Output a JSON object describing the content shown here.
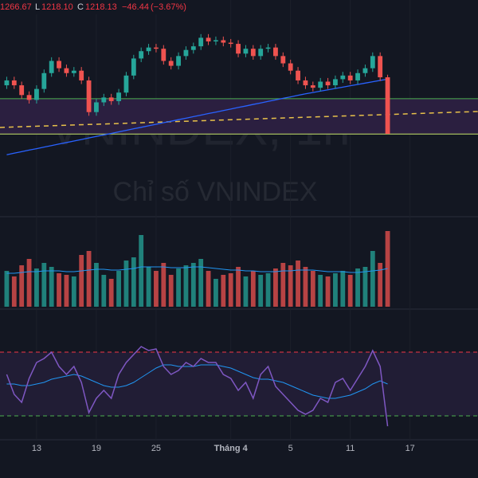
{
  "chart_data": {
    "type": "candlestick",
    "watermark": "VNINDEX, 1h",
    "watermark_sub": "Chỉ số VNINDEX",
    "ohlc_header": {
      "high": {
        "value": 1266.67,
        "label": "1266.67"
      },
      "low": {
        "key": "L",
        "value": 1218.1,
        "label": "1218.10"
      },
      "close": {
        "key": "C",
        "value": 1218.13,
        "label": "1218.13"
      },
      "change": {
        "value": -46.44,
        "label": "−46.44"
      },
      "change_pct": {
        "value": -3.67,
        "label": "(−3.67%)"
      }
    },
    "xlim": [
      -0.9,
      63.1
    ],
    "xticks": [
      {
        "value": 4,
        "label": "13"
      },
      {
        "value": 12,
        "label": "19"
      },
      {
        "value": 20,
        "label": "25"
      },
      {
        "value": 30,
        "label": "Tháng 4"
      },
      {
        "value": 38,
        "label": "5"
      },
      {
        "value": 46,
        "label": "11"
      },
      {
        "value": 54,
        "label": "17"
      }
    ],
    "ylim": [
      1158,
      1328
    ],
    "up_color": "#26a69a",
    "down_color": "#ef5350",
    "opens": [
      1258,
      1262,
      1258,
      1250,
      1246,
      1255,
      1268,
      1278,
      1272,
      1268,
      1270,
      1262,
      1236,
      1244,
      1248,
      1245,
      1252,
      1266,
      1280,
      1286,
      1289,
      1288,
      1278,
      1274,
      1282,
      1287,
      1290,
      1297,
      1294,
      1295,
      1293,
      1292,
      1284,
      1288,
      1282,
      1288,
      1289,
      1282,
      1276,
      1270,
      1262,
      1258,
      1256,
      1261,
      1258,
      1263,
      1266,
      1262,
      1268,
      1272,
      1282,
      1264.57
    ],
    "highs": [
      1265,
      1265,
      1261,
      1253,
      1258,
      1271,
      1281,
      1281,
      1275,
      1273,
      1273,
      1265,
      1247,
      1251,
      1251,
      1255,
      1269,
      1283,
      1289,
      1292,
      1292,
      1291,
      1281,
      1285,
      1290,
      1293,
      1300,
      1300,
      1298,
      1298,
      1296,
      1295,
      1291,
      1291,
      1291,
      1292,
      1292,
      1285,
      1279,
      1273,
      1265,
      1261,
      1264,
      1264,
      1266,
      1269,
      1269,
      1271,
      1275,
      1285,
      1285,
      1266.67
    ],
    "lows": [
      1255,
      1255,
      1247,
      1243,
      1243,
      1252,
      1265,
      1269,
      1265,
      1265,
      1259,
      1233,
      1233,
      1241,
      1242,
      1242,
      1249,
      1263,
      1277,
      1283,
      1285,
      1275,
      1271,
      1271,
      1279,
      1284,
      1287,
      1291,
      1291,
      1290,
      1289,
      1281,
      1281,
      1279,
      1279,
      1285,
      1279,
      1273,
      1267,
      1259,
      1255,
      1253,
      1253,
      1255,
      1255,
      1260,
      1259,
      1259,
      1265,
      1269,
      1261.57,
      1218.1
    ],
    "closes": [
      1262,
      1258,
      1250,
      1246,
      1255,
      1268,
      1278,
      1272,
      1268,
      1270,
      1262,
      1236,
      1244,
      1248,
      1245,
      1252,
      1266,
      1280,
      1286,
      1289,
      1288,
      1278,
      1274,
      1282,
      1287,
      1290,
      1297,
      1294,
      1295,
      1293,
      1292,
      1284,
      1288,
      1282,
      1288,
      1289,
      1282,
      1276,
      1270,
      1262,
      1258,
      1256,
      1261,
      1258,
      1263,
      1266,
      1262,
      1268,
      1272,
      1282,
      1264.57,
      1218.13
    ],
    "ma": {
      "color": "#2962ff",
      "values": [
        1201,
        1202.3,
        1203.5,
        1204.8,
        1206,
        1207.3,
        1208.5,
        1209.8,
        1211,
        1212.3,
        1213.5,
        1214.8,
        1216,
        1217.3,
        1218.5,
        1219.8,
        1221,
        1222.3,
        1223.5,
        1224.8,
        1226,
        1227.3,
        1228.5,
        1229.8,
        1231,
        1232.3,
        1233.5,
        1234.8,
        1236,
        1237.3,
        1238.5,
        1239.8,
        1241,
        1242.3,
        1243.5,
        1244.8,
        1246,
        1247.3,
        1248.5,
        1249.8,
        1251,
        1252.1,
        1253.2,
        1254.3,
        1255.4,
        1256.5,
        1257.6,
        1258.7,
        1259.8,
        1260.9,
        1262,
        1263
      ]
    },
    "levels": [
      {
        "value": 1247,
        "color": "#4caf50"
      },
      {
        "value": 1218,
        "color": "#c6e36a"
      }
    ],
    "level_band_color": "#2b1f40",
    "trendline": {
      "color": "#e8c14a",
      "points": [
        [
          -0.9,
          1223.4
        ],
        [
          63.1,
          1236.5
        ]
      ]
    },
    "volume": {
      "ylim": [
        0,
        100
      ],
      "values": [
        45,
        38,
        52,
        60,
        48,
        55,
        50,
        42,
        40,
        38,
        65,
        70,
        55,
        40,
        35,
        45,
        58,
        62,
        90,
        50,
        45,
        55,
        40,
        48,
        52,
        55,
        60,
        45,
        35,
        40,
        42,
        50,
        38,
        45,
        40,
        42,
        48,
        55,
        52,
        58,
        50,
        45,
        40,
        38,
        42,
        45,
        40,
        48,
        50,
        70,
        55,
        95
      ],
      "ma": {
        "color": "#2196f3",
        "values": [
          42,
          42,
          43,
          44,
          44,
          45,
          45,
          45,
          44,
          44,
          45,
          46,
          47,
          47,
          46,
          46,
          47,
          48,
          50,
          50,
          50,
          50,
          49,
          49,
          49,
          50,
          50,
          49,
          48,
          47,
          46,
          46,
          45,
          45,
          44,
          44,
          44,
          45,
          45,
          46,
          46,
          46,
          45,
          44,
          44,
          44,
          43,
          43,
          44,
          45,
          46,
          48
        ]
      }
    },
    "rsi": {
      "ylim": [
        16,
        93.5
      ],
      "color": "#7e57c2",
      "band_color": "#211d35",
      "values": [
        56,
        43.5,
        38.5,
        53.5,
        63.5,
        66,
        70,
        61,
        56,
        61,
        51,
        32,
        41,
        46,
        41,
        56,
        63.5,
        68.5,
        73.5,
        71,
        72,
        61,
        56,
        58.5,
        63.5,
        61,
        66,
        63.5,
        63.5,
        56,
        53.5,
        46,
        51,
        41,
        56,
        61,
        48.5,
        43.5,
        38.5,
        33.5,
        31,
        33.5,
        41,
        38.5,
        51,
        53.5,
        46,
        53.5,
        61,
        71,
        61,
        23.5
      ],
      "ma": {
        "color": "#2196f3",
        "values": [
          50,
          50,
          49,
          49,
          50,
          51,
          53,
          54,
          55,
          56,
          55,
          53,
          51,
          49,
          48,
          48,
          49,
          51,
          54,
          57,
          60,
          62,
          62,
          61,
          61,
          61,
          62,
          62,
          62,
          61,
          60,
          58,
          56,
          54,
          53,
          53,
          52,
          51,
          49,
          47,
          45,
          43,
          42,
          41,
          41,
          42,
          43,
          45,
          47,
          50,
          52,
          50
        ]
      },
      "levels": [
        {
          "value": 70,
          "color": "#f23645"
        },
        {
          "value": 30,
          "color": "#4caf50"
        }
      ]
    }
  }
}
